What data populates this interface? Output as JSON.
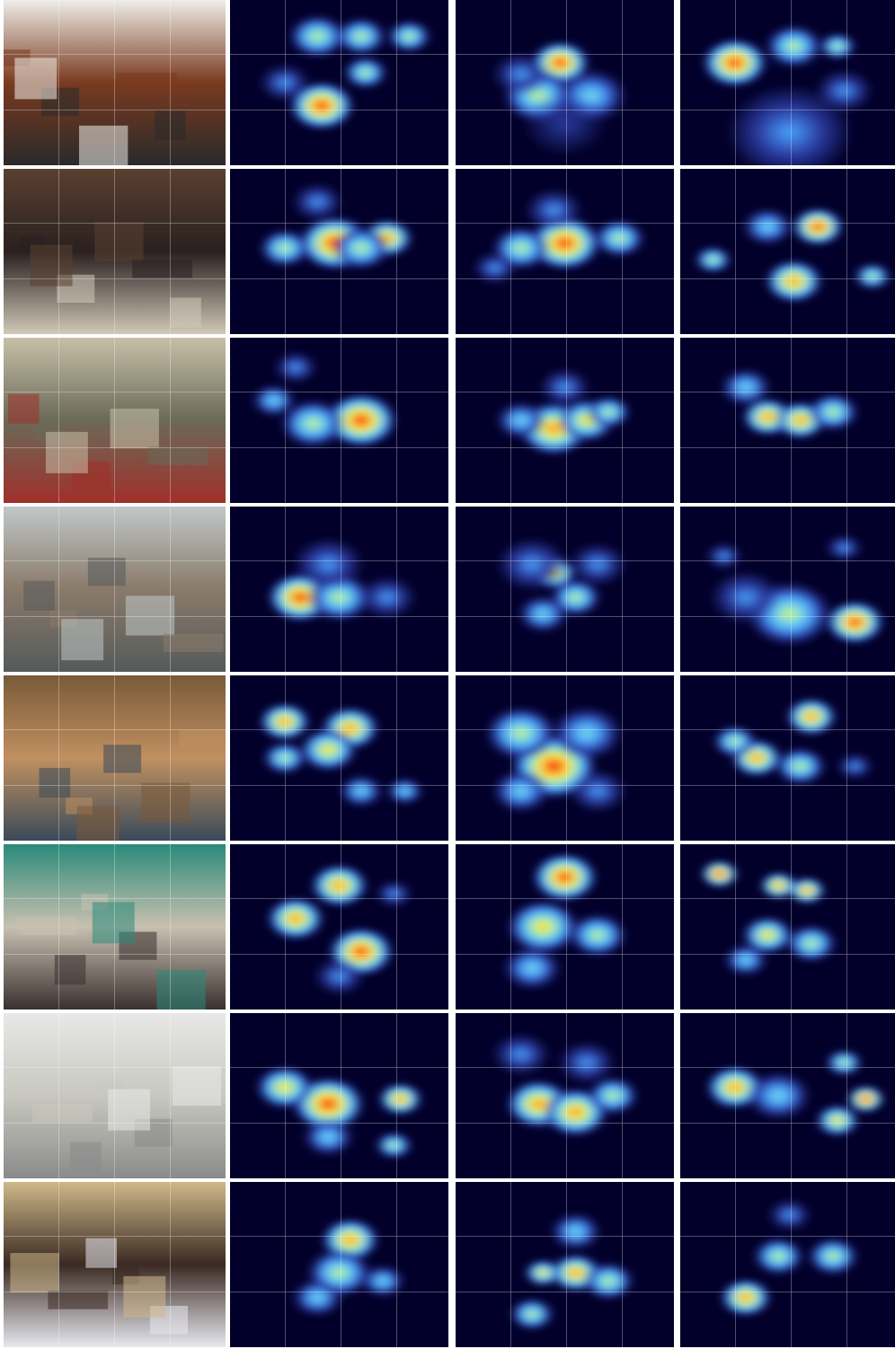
{
  "layout": {
    "rows": 8,
    "columns": 4
  },
  "colormap": [
    "#02002a",
    "#2a3a9e",
    "#4aa3ff",
    "#7fe0d8",
    "#d9f06a",
    "#ffcc33",
    "#ff6a1a",
    "#d40000"
  ],
  "rows": [
    {
      "scene": "office-desk-with-lamp-and-monitor",
      "photo_palette": [
        "#efeee8",
        "#7a3a20",
        "#2a2a2a"
      ],
      "maps": [
        [
          [
            0.4,
            0.22,
            0.08,
            0.6
          ],
          [
            0.6,
            0.22,
            0.07,
            0.5
          ],
          [
            0.82,
            0.22,
            0.06,
            0.5
          ],
          [
            0.62,
            0.44,
            0.06,
            0.5
          ],
          [
            0.42,
            0.64,
            0.09,
            1.0
          ],
          [
            0.25,
            0.5,
            0.07,
            0.3
          ]
        ],
        [
          [
            0.48,
            0.38,
            0.08,
            1.0
          ],
          [
            0.38,
            0.58,
            0.1,
            0.5
          ],
          [
            0.62,
            0.58,
            0.1,
            0.4
          ],
          [
            0.3,
            0.45,
            0.08,
            0.3
          ],
          [
            0.5,
            0.75,
            0.12,
            0.2
          ]
        ],
        [
          [
            0.25,
            0.38,
            0.09,
            1.0
          ],
          [
            0.52,
            0.28,
            0.08,
            0.5
          ],
          [
            0.72,
            0.28,
            0.05,
            0.5
          ],
          [
            0.5,
            0.8,
            0.18,
            0.25
          ],
          [
            0.75,
            0.55,
            0.08,
            0.3
          ]
        ]
      ]
    },
    {
      "scene": "group-of-people-indoors",
      "photo_palette": [
        "#5a4030",
        "#2a2020",
        "#d0c8b8"
      ],
      "maps": [
        [
          [
            0.25,
            0.48,
            0.07,
            0.6
          ],
          [
            0.48,
            0.45,
            0.1,
            0.95
          ],
          [
            0.72,
            0.42,
            0.07,
            0.8
          ],
          [
            0.4,
            0.2,
            0.07,
            0.3
          ],
          [
            0.6,
            0.48,
            0.08,
            0.6
          ]
        ],
        [
          [
            0.5,
            0.45,
            0.1,
            1.0
          ],
          [
            0.3,
            0.48,
            0.08,
            0.5
          ],
          [
            0.75,
            0.42,
            0.07,
            0.5
          ],
          [
            0.45,
            0.25,
            0.08,
            0.3
          ],
          [
            0.18,
            0.6,
            0.06,
            0.3
          ]
        ],
        [
          [
            0.63,
            0.35,
            0.07,
            1.0
          ],
          [
            0.52,
            0.68,
            0.08,
            0.9
          ],
          [
            0.15,
            0.55,
            0.05,
            0.5
          ],
          [
            0.88,
            0.65,
            0.05,
            0.5
          ],
          [
            0.4,
            0.35,
            0.07,
            0.4
          ]
        ]
      ]
    },
    {
      "scene": "garage-with-motorcycles",
      "photo_palette": [
        "#c8c0a8",
        "#6a6a58",
        "#a0302a"
      ],
      "maps": [
        [
          [
            0.6,
            0.5,
            0.1,
            0.95
          ],
          [
            0.38,
            0.52,
            0.09,
            0.6
          ],
          [
            0.2,
            0.38,
            0.06,
            0.4
          ],
          [
            0.3,
            0.18,
            0.06,
            0.3
          ]
        ],
        [
          [
            0.45,
            0.55,
            0.1,
            0.8
          ],
          [
            0.6,
            0.5,
            0.08,
            0.7
          ],
          [
            0.7,
            0.45,
            0.06,
            0.6
          ],
          [
            0.5,
            0.3,
            0.07,
            0.3
          ],
          [
            0.3,
            0.5,
            0.07,
            0.4
          ]
        ],
        [
          [
            0.4,
            0.48,
            0.07,
            0.9
          ],
          [
            0.55,
            0.5,
            0.07,
            0.8
          ],
          [
            0.7,
            0.45,
            0.07,
            0.5
          ],
          [
            0.3,
            0.3,
            0.07,
            0.4
          ]
        ]
      ]
    },
    {
      "scene": "street-with-trees-and-cars",
      "photo_palette": [
        "#c0c8c8",
        "#8a7a6a",
        "#555a5a"
      ],
      "maps": [
        [
          [
            0.32,
            0.55,
            0.09,
            0.95
          ],
          [
            0.5,
            0.55,
            0.09,
            0.6
          ],
          [
            0.45,
            0.35,
            0.1,
            0.3
          ],
          [
            0.72,
            0.55,
            0.08,
            0.35
          ]
        ],
        [
          [
            0.45,
            0.4,
            0.06,
            0.9
          ],
          [
            0.55,
            0.55,
            0.07,
            0.6
          ],
          [
            0.4,
            0.65,
            0.07,
            0.4
          ],
          [
            0.35,
            0.35,
            0.1,
            0.3
          ],
          [
            0.65,
            0.35,
            0.08,
            0.3
          ]
        ],
        [
          [
            0.8,
            0.7,
            0.08,
            0.95
          ],
          [
            0.5,
            0.65,
            0.12,
            0.5
          ],
          [
            0.3,
            0.55,
            0.1,
            0.35
          ],
          [
            0.2,
            0.3,
            0.05,
            0.3
          ],
          [
            0.75,
            0.25,
            0.05,
            0.3
          ]
        ]
      ]
    },
    {
      "scene": "kitchen-with-shelves",
      "photo_palette": [
        "#7a5a3a",
        "#c09060",
        "#3a4a5a"
      ],
      "maps": [
        [
          [
            0.25,
            0.28,
            0.07,
            0.9
          ],
          [
            0.55,
            0.32,
            0.08,
            0.8
          ],
          [
            0.45,
            0.45,
            0.08,
            0.7
          ],
          [
            0.25,
            0.5,
            0.06,
            0.5
          ],
          [
            0.6,
            0.7,
            0.06,
            0.4
          ],
          [
            0.8,
            0.7,
            0.05,
            0.4
          ]
        ],
        [
          [
            0.45,
            0.55,
            0.12,
            0.95
          ],
          [
            0.3,
            0.35,
            0.1,
            0.5
          ],
          [
            0.6,
            0.35,
            0.1,
            0.4
          ],
          [
            0.3,
            0.7,
            0.08,
            0.4
          ],
          [
            0.65,
            0.7,
            0.08,
            0.35
          ]
        ],
        [
          [
            0.6,
            0.25,
            0.07,
            0.9
          ],
          [
            0.35,
            0.5,
            0.07,
            0.85
          ],
          [
            0.25,
            0.4,
            0.06,
            0.5
          ],
          [
            0.55,
            0.55,
            0.07,
            0.5
          ],
          [
            0.8,
            0.55,
            0.05,
            0.3
          ]
        ]
      ]
    },
    {
      "scene": "cluttered-office-with-green-wall",
      "photo_palette": [
        "#2a8a7a",
        "#c8c0b0",
        "#3a3030"
      ],
      "maps": [
        [
          [
            0.5,
            0.25,
            0.08,
            0.85
          ],
          [
            0.3,
            0.45,
            0.08,
            0.9
          ],
          [
            0.6,
            0.65,
            0.09,
            0.95
          ],
          [
            0.75,
            0.3,
            0.05,
            0.3
          ],
          [
            0.5,
            0.8,
            0.07,
            0.3
          ]
        ],
        [
          [
            0.5,
            0.2,
            0.09,
            1.0
          ],
          [
            0.4,
            0.5,
            0.1,
            0.7
          ],
          [
            0.65,
            0.55,
            0.08,
            0.5
          ],
          [
            0.35,
            0.75,
            0.08,
            0.4
          ]
        ],
        [
          [
            0.18,
            0.18,
            0.05,
            0.95
          ],
          [
            0.45,
            0.25,
            0.05,
            0.9
          ],
          [
            0.58,
            0.28,
            0.05,
            0.8
          ],
          [
            0.4,
            0.55,
            0.07,
            0.7
          ],
          [
            0.6,
            0.6,
            0.07,
            0.6
          ],
          [
            0.3,
            0.7,
            0.06,
            0.4
          ]
        ]
      ]
    },
    {
      "scene": "white-laboratory-room",
      "photo_palette": [
        "#e8e8e8",
        "#c8c8c0",
        "#8a8a8a"
      ],
      "maps": [
        [
          [
            0.45,
            0.55,
            0.1,
            0.95
          ],
          [
            0.25,
            0.45,
            0.08,
            0.7
          ],
          [
            0.78,
            0.52,
            0.06,
            0.85
          ],
          [
            0.75,
            0.8,
            0.05,
            0.6
          ],
          [
            0.45,
            0.75,
            0.07,
            0.4
          ]
        ],
        [
          [
            0.38,
            0.55,
            0.09,
            0.9
          ],
          [
            0.55,
            0.6,
            0.09,
            0.85
          ],
          [
            0.72,
            0.5,
            0.07,
            0.5
          ],
          [
            0.3,
            0.25,
            0.08,
            0.35
          ],
          [
            0.6,
            0.3,
            0.08,
            0.35
          ]
        ],
        [
          [
            0.25,
            0.45,
            0.08,
            0.85
          ],
          [
            0.85,
            0.52,
            0.05,
            0.95
          ],
          [
            0.72,
            0.65,
            0.06,
            0.7
          ],
          [
            0.75,
            0.3,
            0.05,
            0.6
          ],
          [
            0.45,
            0.5,
            0.09,
            0.4
          ]
        ]
      ]
    },
    {
      "scene": "round-table-with-plate-and-cards",
      "photo_palette": [
        "#d0b88a",
        "#3a2a22",
        "#e8e8f0"
      ],
      "maps": [
        [
          [
            0.55,
            0.35,
            0.08,
            0.9
          ],
          [
            0.5,
            0.55,
            0.09,
            0.6
          ],
          [
            0.7,
            0.6,
            0.06,
            0.45
          ],
          [
            0.4,
            0.7,
            0.07,
            0.4
          ]
        ],
        [
          [
            0.55,
            0.55,
            0.07,
            0.9
          ],
          [
            0.4,
            0.55,
            0.05,
            0.7
          ],
          [
            0.35,
            0.8,
            0.06,
            0.6
          ],
          [
            0.7,
            0.6,
            0.07,
            0.6
          ],
          [
            0.55,
            0.3,
            0.07,
            0.4
          ]
        ],
        [
          [
            0.3,
            0.7,
            0.07,
            0.9
          ],
          [
            0.45,
            0.45,
            0.07,
            0.6
          ],
          [
            0.7,
            0.45,
            0.07,
            0.5
          ],
          [
            0.5,
            0.2,
            0.06,
            0.3
          ]
        ]
      ]
    }
  ]
}
